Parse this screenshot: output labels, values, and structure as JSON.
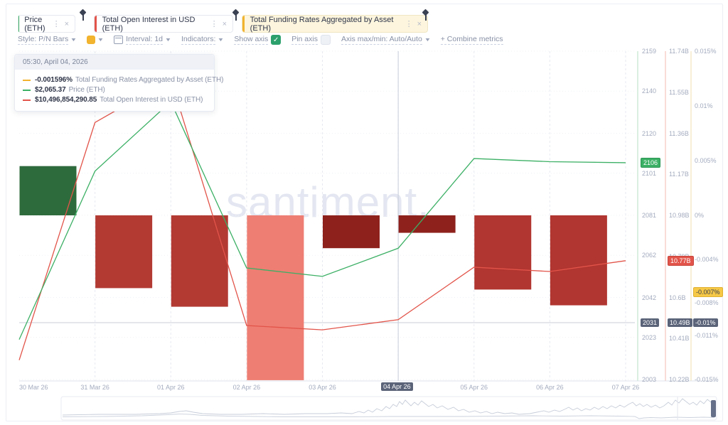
{
  "window": {
    "watermark": "santiment."
  },
  "tabs": [
    {
      "label": "Price (ETH)",
      "accent": "#3cb065",
      "bg": "#ffffff"
    },
    {
      "label": "Total Open Interest in USD (ETH)",
      "accent": "#e2544a",
      "bg": "#ffffff"
    },
    {
      "label": "Total Funding Rates Aggregated by Asset (ETH)",
      "accent": "#f2b32e",
      "bg": "#fdf5dd"
    }
  ],
  "toolbar": {
    "style_label": "Style: P/N Bars",
    "swatch_color": "#f2b32e",
    "interval_label": "Interval: 1d",
    "indicators_label": "Indicators:",
    "show_axis_label": "Show axis",
    "show_axis_checked": "✓",
    "pin_axis_label": "Pin axis",
    "axis_maxmin_label": "Axis max/min: Auto/Auto",
    "combine_label": "+  Combine metrics"
  },
  "tooltip": {
    "datetime": "05:30, April 04, 2026",
    "rows": [
      {
        "value": "-0.001596%",
        "name": "Total Funding Rates Aggregated by Asset (ETH)",
        "color": "#f2b32e"
      },
      {
        "value": "$2,065.37",
        "name": "Price (ETH)",
        "color": "#3cb065"
      },
      {
        "value": "$10,496,854,290.85",
        "name": "Total Open Interest in USD (ETH)",
        "color": "#e2544a"
      }
    ]
  },
  "chart": {
    "crosshair": {
      "x_label": "04 Apr 26",
      "price": "2031",
      "open_interest": "10.49B",
      "funding": "-0.01%"
    },
    "axes": {
      "price": {
        "color": "#3cb065",
        "ticks": [
          {
            "label": "2159",
            "v": 2159
          },
          {
            "label": "2140",
            "v": 2140
          },
          {
            "label": "2120",
            "v": 2120
          },
          {
            "label": "2101",
            "v": 2101
          },
          {
            "label": "2081",
            "v": 2081
          },
          {
            "label": "2062",
            "v": 2062
          },
          {
            "label": "2042",
            "v": 2042
          },
          {
            "label": "2023",
            "v": 2023
          },
          {
            "label": "2003",
            "v": 2003
          }
        ],
        "latest": {
          "label": "2106",
          "v": 2106
        }
      },
      "open_interest": {
        "color": "#e2544a",
        "ticks": [
          {
            "label": "11.74B",
            "v": 11.74
          },
          {
            "label": "11.55B",
            "v": 11.55
          },
          {
            "label": "11.36B",
            "v": 11.36
          },
          {
            "label": "11.17B",
            "v": 11.17
          },
          {
            "label": "10.98B",
            "v": 10.98
          },
          {
            "label": "10.79B",
            "v": 10.79
          },
          {
            "label": "10.6B",
            "v": 10.6
          },
          {
            "label": "10.41B",
            "v": 10.41
          },
          {
            "label": "10.22B",
            "v": 10.22
          }
        ],
        "latest": {
          "label": "10.77B",
          "v": 10.77
        }
      },
      "funding": {
        "color": "#f2c14a",
        "ticks": [
          {
            "label": "0.015%",
            "v": 0.015
          },
          {
            "label": "0.01%",
            "v": 0.01
          },
          {
            "label": "0.005%",
            "v": 0.005
          },
          {
            "label": "0%",
            "v": 0
          },
          {
            "label": "-0.004%",
            "v": -0.004
          },
          {
            "label": "-0.008%",
            "v": -0.008
          },
          {
            "label": "-0.011%",
            "v": -0.011
          },
          {
            "label": "-0.015%",
            "v": -0.015
          }
        ],
        "latest": {
          "label": "-0.007%",
          "v": -0.007
        }
      }
    }
  },
  "chart_data": {
    "type": "mixed",
    "categories": [
      "30 Mar 26",
      "31 Mar 26",
      "01 Apr 26",
      "02 Apr 26",
      "03 Apr 26",
      "04 Apr 26",
      "05 Apr 26",
      "06 Apr 26",
      "07 Apr 26"
    ],
    "series": [
      {
        "name": "Price (ETH)",
        "type": "line",
        "unit": "USD",
        "color": "#3cb065",
        "values": [
          2022,
          2102,
          2135,
          2056,
          2052,
          2065.37,
          2108,
          2106.5,
          2106
        ],
        "ylim": [
          2003,
          2159
        ]
      },
      {
        "name": "Total Open Interest in USD (ETH)",
        "type": "line",
        "unit": "USD billions",
        "color": "#e2544a",
        "values": [
          10.31,
          11.41,
          11.61,
          10.47,
          10.45,
          10.497,
          10.74,
          10.72,
          10.77
        ],
        "ylim": [
          10.22,
          11.74
        ]
      },
      {
        "name": "Total Funding Rates Aggregated by Asset (ETH)",
        "type": "pn_bars",
        "unit": "percent",
        "color": "#f2c14a",
        "values": [
          0.0045,
          -0.00665,
          -0.00835,
          -0.01506,
          -0.003,
          -0.001596,
          -0.00678,
          -0.00822,
          null
        ],
        "bar_colors": [
          "#2e6b3c",
          "#b23a33",
          "#b23a33",
          "#ee7e73",
          "#8e211c",
          "#8e211c",
          "#b13530",
          "#b13530",
          null
        ],
        "ylim": [
          -0.015,
          0.015
        ]
      }
    ],
    "legend_position": "tooltip",
    "grid": true
  }
}
